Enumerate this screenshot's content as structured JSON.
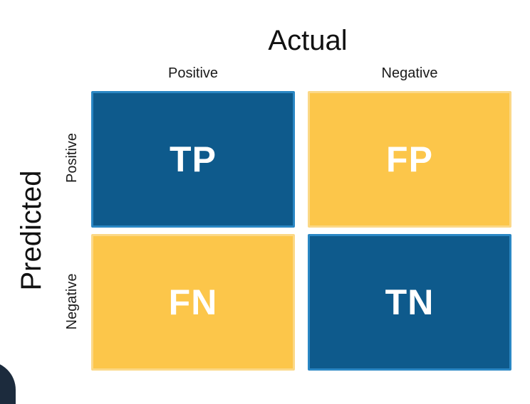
{
  "axes": {
    "actual_title": "Actual",
    "predicted_title": "Predicted",
    "columns": [
      "Positive",
      "Negative"
    ],
    "rows": [
      "Positive",
      "Negative"
    ]
  },
  "cells": {
    "tp": "TP",
    "fp": "FP",
    "fn": "FN",
    "tn": "TN"
  },
  "colors": {
    "blue": "#0e5a8c",
    "yellow": "#fcc64a",
    "text_on_cell": "#ffffff"
  }
}
